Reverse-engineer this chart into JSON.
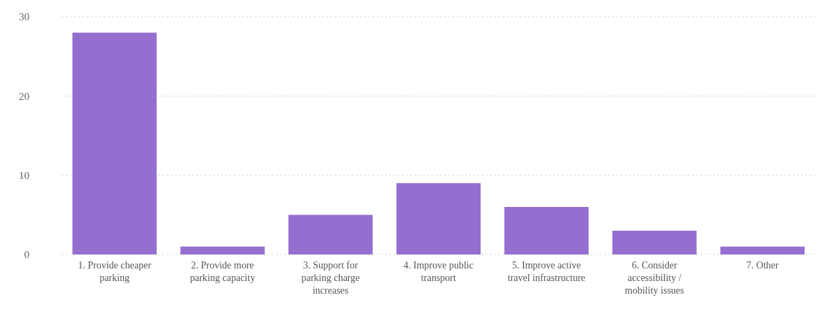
{
  "chart_data": {
    "type": "bar",
    "categories": [
      "1. Provide cheaper parking",
      "2. Provide more parking capacity",
      "3. Support for parking charge increases",
      "4. Improve public transport",
      "5. Improve active travel infrastructure",
      "6. Consider accessibility / mobility issues",
      "7. Other"
    ],
    "values": [
      28,
      1,
      5,
      9,
      6,
      3,
      1
    ],
    "color": "#946fcf",
    "ylim": [
      0,
      30
    ],
    "yticks": [
      0,
      10,
      20,
      30
    ],
    "grid": "y"
  }
}
